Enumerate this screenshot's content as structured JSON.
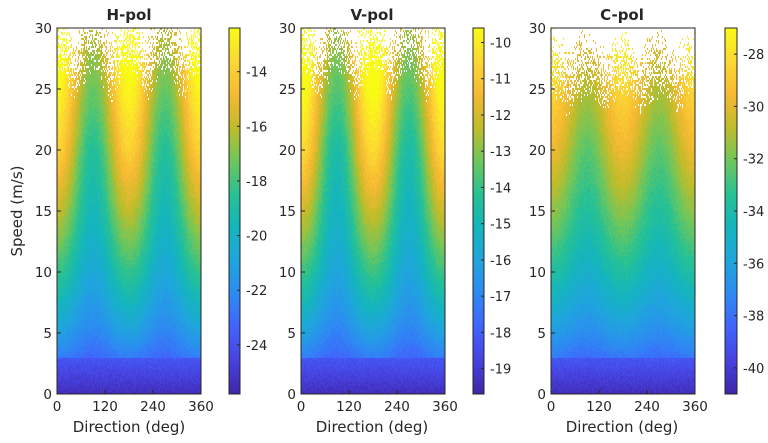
{
  "figure": {
    "colormap": [
      "#3e26a8",
      "#4742e0",
      "#4163fd",
      "#2d8af2",
      "#1fa5dd",
      "#14b5bd",
      "#27c193",
      "#6ec65c",
      "#bfbc2a",
      "#f6b932",
      "#fcd833",
      "#f9fb15"
    ]
  },
  "chart_data": [
    {
      "type": "heatmap",
      "title": "H-pol",
      "xlabel": "Direction (deg)",
      "ylabel": "Speed (m/s)",
      "x_ticks": [
        "0",
        "120",
        "240",
        "360"
      ],
      "y_ticks": [
        "0",
        "5",
        "10",
        "15",
        "20",
        "25",
        "30"
      ],
      "xlim": [
        0,
        360
      ],
      "ylim": [
        0,
        30
      ],
      "colorbar": {
        "range": [
          -25.8,
          -12.4
        ],
        "ticks": [
          -24,
          -22,
          -20,
          -18,
          -16,
          -14
        ],
        "tick_labels": [
          "-24",
          "-22",
          "-20",
          "-18",
          "-16",
          "-14"
        ]
      },
      "pattern": {
        "upwind_downwind_modulation": 1.0,
        "crosswind_peaks_deg": [
          90,
          270
        ],
        "upwind_peaks_deg": [
          0,
          180,
          360
        ],
        "data_top_speed_m_s": 30
      }
    },
    {
      "type": "heatmap",
      "title": "V-pol",
      "xlabel": "Direction (deg)",
      "ylabel": "",
      "x_ticks": [
        "0",
        "120",
        "240",
        "360"
      ],
      "y_ticks": [
        "0",
        "5",
        "10",
        "15",
        "20",
        "25",
        "30"
      ],
      "xlim": [
        0,
        360
      ],
      "ylim": [
        0,
        30
      ],
      "colorbar": {
        "range": [
          -19.7,
          -9.6
        ],
        "ticks": [
          -19,
          -18,
          -17,
          -16,
          -15,
          -14,
          -13,
          -12,
          -11,
          -10
        ],
        "tick_labels": [
          "-19",
          "-18",
          "-17",
          "-16",
          "-15",
          "-14",
          "-13",
          "-12",
          "-11",
          "-10"
        ]
      },
      "pattern": {
        "upwind_downwind_modulation": 1.15,
        "crosswind_peaks_deg": [
          90,
          270
        ],
        "upwind_peaks_deg": [
          0,
          180,
          360
        ],
        "data_top_speed_m_s": 30
      }
    },
    {
      "type": "heatmap",
      "title": "C-pol",
      "xlabel": "Direction (deg)",
      "ylabel": "",
      "x_ticks": [
        "0",
        "120",
        "240",
        "360"
      ],
      "y_ticks": [
        "0",
        "5",
        "10",
        "15",
        "20",
        "25",
        "30"
      ],
      "xlim": [
        0,
        360
      ],
      "ylim": [
        0,
        30
      ],
      "colorbar": {
        "range": [
          -41,
          -27
        ],
        "ticks": [
          -40,
          -38,
          -36,
          -34,
          -32,
          -30,
          -28
        ],
        "tick_labels": [
          "-40",
          "-38",
          "-36",
          "-34",
          "-32",
          "-30",
          "-28"
        ]
      },
      "pattern": {
        "upwind_downwind_modulation": 0.55,
        "crosswind_peaks_deg": [
          90,
          270
        ],
        "upwind_peaks_deg": [
          0,
          180,
          360
        ],
        "data_top_speed_m_s": 29
      }
    }
  ]
}
